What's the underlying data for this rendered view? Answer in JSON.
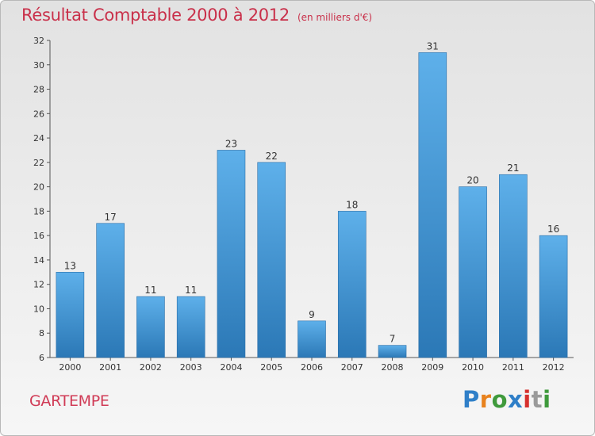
{
  "header": {
    "title": "Résultat Comptable 2000 à 2012",
    "unit": "(en milliers d'€)"
  },
  "footer": {
    "commune": "GARTEMPE"
  },
  "logo": {
    "text": "Proxiti",
    "letters": [
      {
        "char": "P",
        "color": "#2f7fc8"
      },
      {
        "char": "r",
        "color": "#e8821e"
      },
      {
        "char": "o",
        "color": "#3f9a3c"
      },
      {
        "char": "x",
        "color": "#2f7fc8"
      },
      {
        "char": "i",
        "color": "#d6302e"
      },
      {
        "char": "t",
        "color": "#9a9a9a"
      },
      {
        "char": "i",
        "color": "#3f9a3c"
      }
    ]
  },
  "chart_data": {
    "type": "bar",
    "categories": [
      "2000",
      "2001",
      "2002",
      "2003",
      "2004",
      "2005",
      "2006",
      "2007",
      "2008",
      "2009",
      "2010",
      "2011",
      "2012"
    ],
    "values": [
      13,
      17,
      11,
      11,
      23,
      22,
      9,
      18,
      7,
      31,
      20,
      21,
      16
    ],
    "ylim": [
      6,
      32
    ],
    "yticks": [
      6,
      8,
      10,
      12,
      14,
      16,
      18,
      20,
      22,
      24,
      26,
      28,
      30,
      32
    ],
    "grid": false,
    "bar_color_top": "#5eb0ea",
    "bar_color_bottom": "#2b78b6"
  }
}
